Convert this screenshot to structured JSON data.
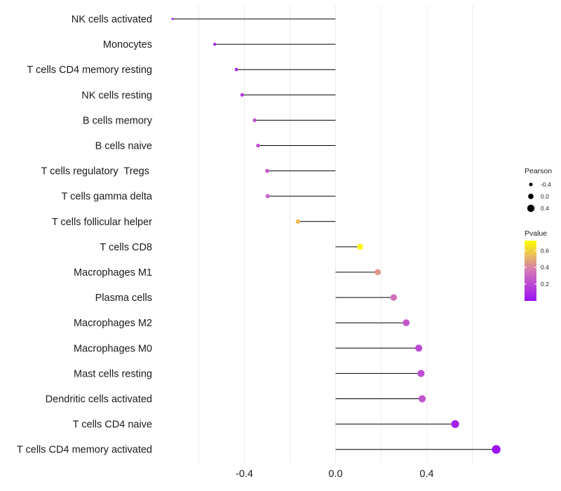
{
  "chart_data": {
    "type": "lollipop",
    "title": "",
    "xlabel": "",
    "ylabel": "",
    "xlim": [
      -0.72,
      0.95
    ],
    "x_ticks": [
      -0.4,
      0.0,
      0.4
    ],
    "x_tick_labels": [
      "-0.4",
      "0.0",
      "0.4"
    ],
    "grid": true,
    "categories": [
      "NK cells activated",
      "Monocytes",
      "T cells CD4 memory resting",
      "NK cells resting",
      "B cells memory",
      "B cells naive",
      "T cells regulatory  Tregs ",
      "T cells gamma delta",
      "T cells follicular helper",
      "T cells CD8",
      "Macrophages M1",
      "Plasma cells",
      "Macrophages M2",
      "Macrophages M0",
      "Mast cells resting",
      "Dendritic cells activated",
      "T cells CD4 naive",
      "T cells CD4 memory activated"
    ],
    "pearson": [
      -0.715,
      -0.53,
      -0.435,
      -0.41,
      -0.355,
      -0.34,
      -0.3,
      -0.298,
      -0.165,
      0.108,
      0.185,
      0.255,
      0.31,
      0.365,
      0.375,
      0.38,
      0.525,
      0.705
    ],
    "pvalue": [
      0.01,
      0.06,
      0.1,
      0.14,
      0.22,
      0.23,
      0.27,
      0.28,
      0.55,
      0.7,
      0.45,
      0.35,
      0.25,
      0.2,
      0.22,
      0.24,
      0.06,
      0.01
    ],
    "size_legend": {
      "title": "Pearson",
      "labels": [
        "-0.4",
        "0.0",
        "0.4"
      ],
      "values": [
        -0.4,
        0.0,
        0.4
      ]
    },
    "color_legend": {
      "title": "Pvalue",
      "labels": [
        "0.6",
        "0.4",
        "0.2"
      ],
      "values": [
        0.6,
        0.4,
        0.2
      ],
      "range": [
        0.0,
        0.72
      ],
      "low_color": "#9b10f5",
      "mid_color": "#d476b8",
      "high_color": "#ffff00"
    },
    "line_color": "#000000",
    "grid_color": "#ebebeb"
  }
}
